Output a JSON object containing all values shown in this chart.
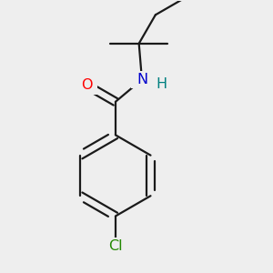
{
  "bg_color": "#eeeeee",
  "bond_color": "#1a1a1a",
  "bond_width": 1.6,
  "atom_colors": {
    "O": "#ff0000",
    "N": "#0000cc",
    "H": "#008080",
    "Cl": "#228800"
  },
  "font_size_atoms": 11.5
}
